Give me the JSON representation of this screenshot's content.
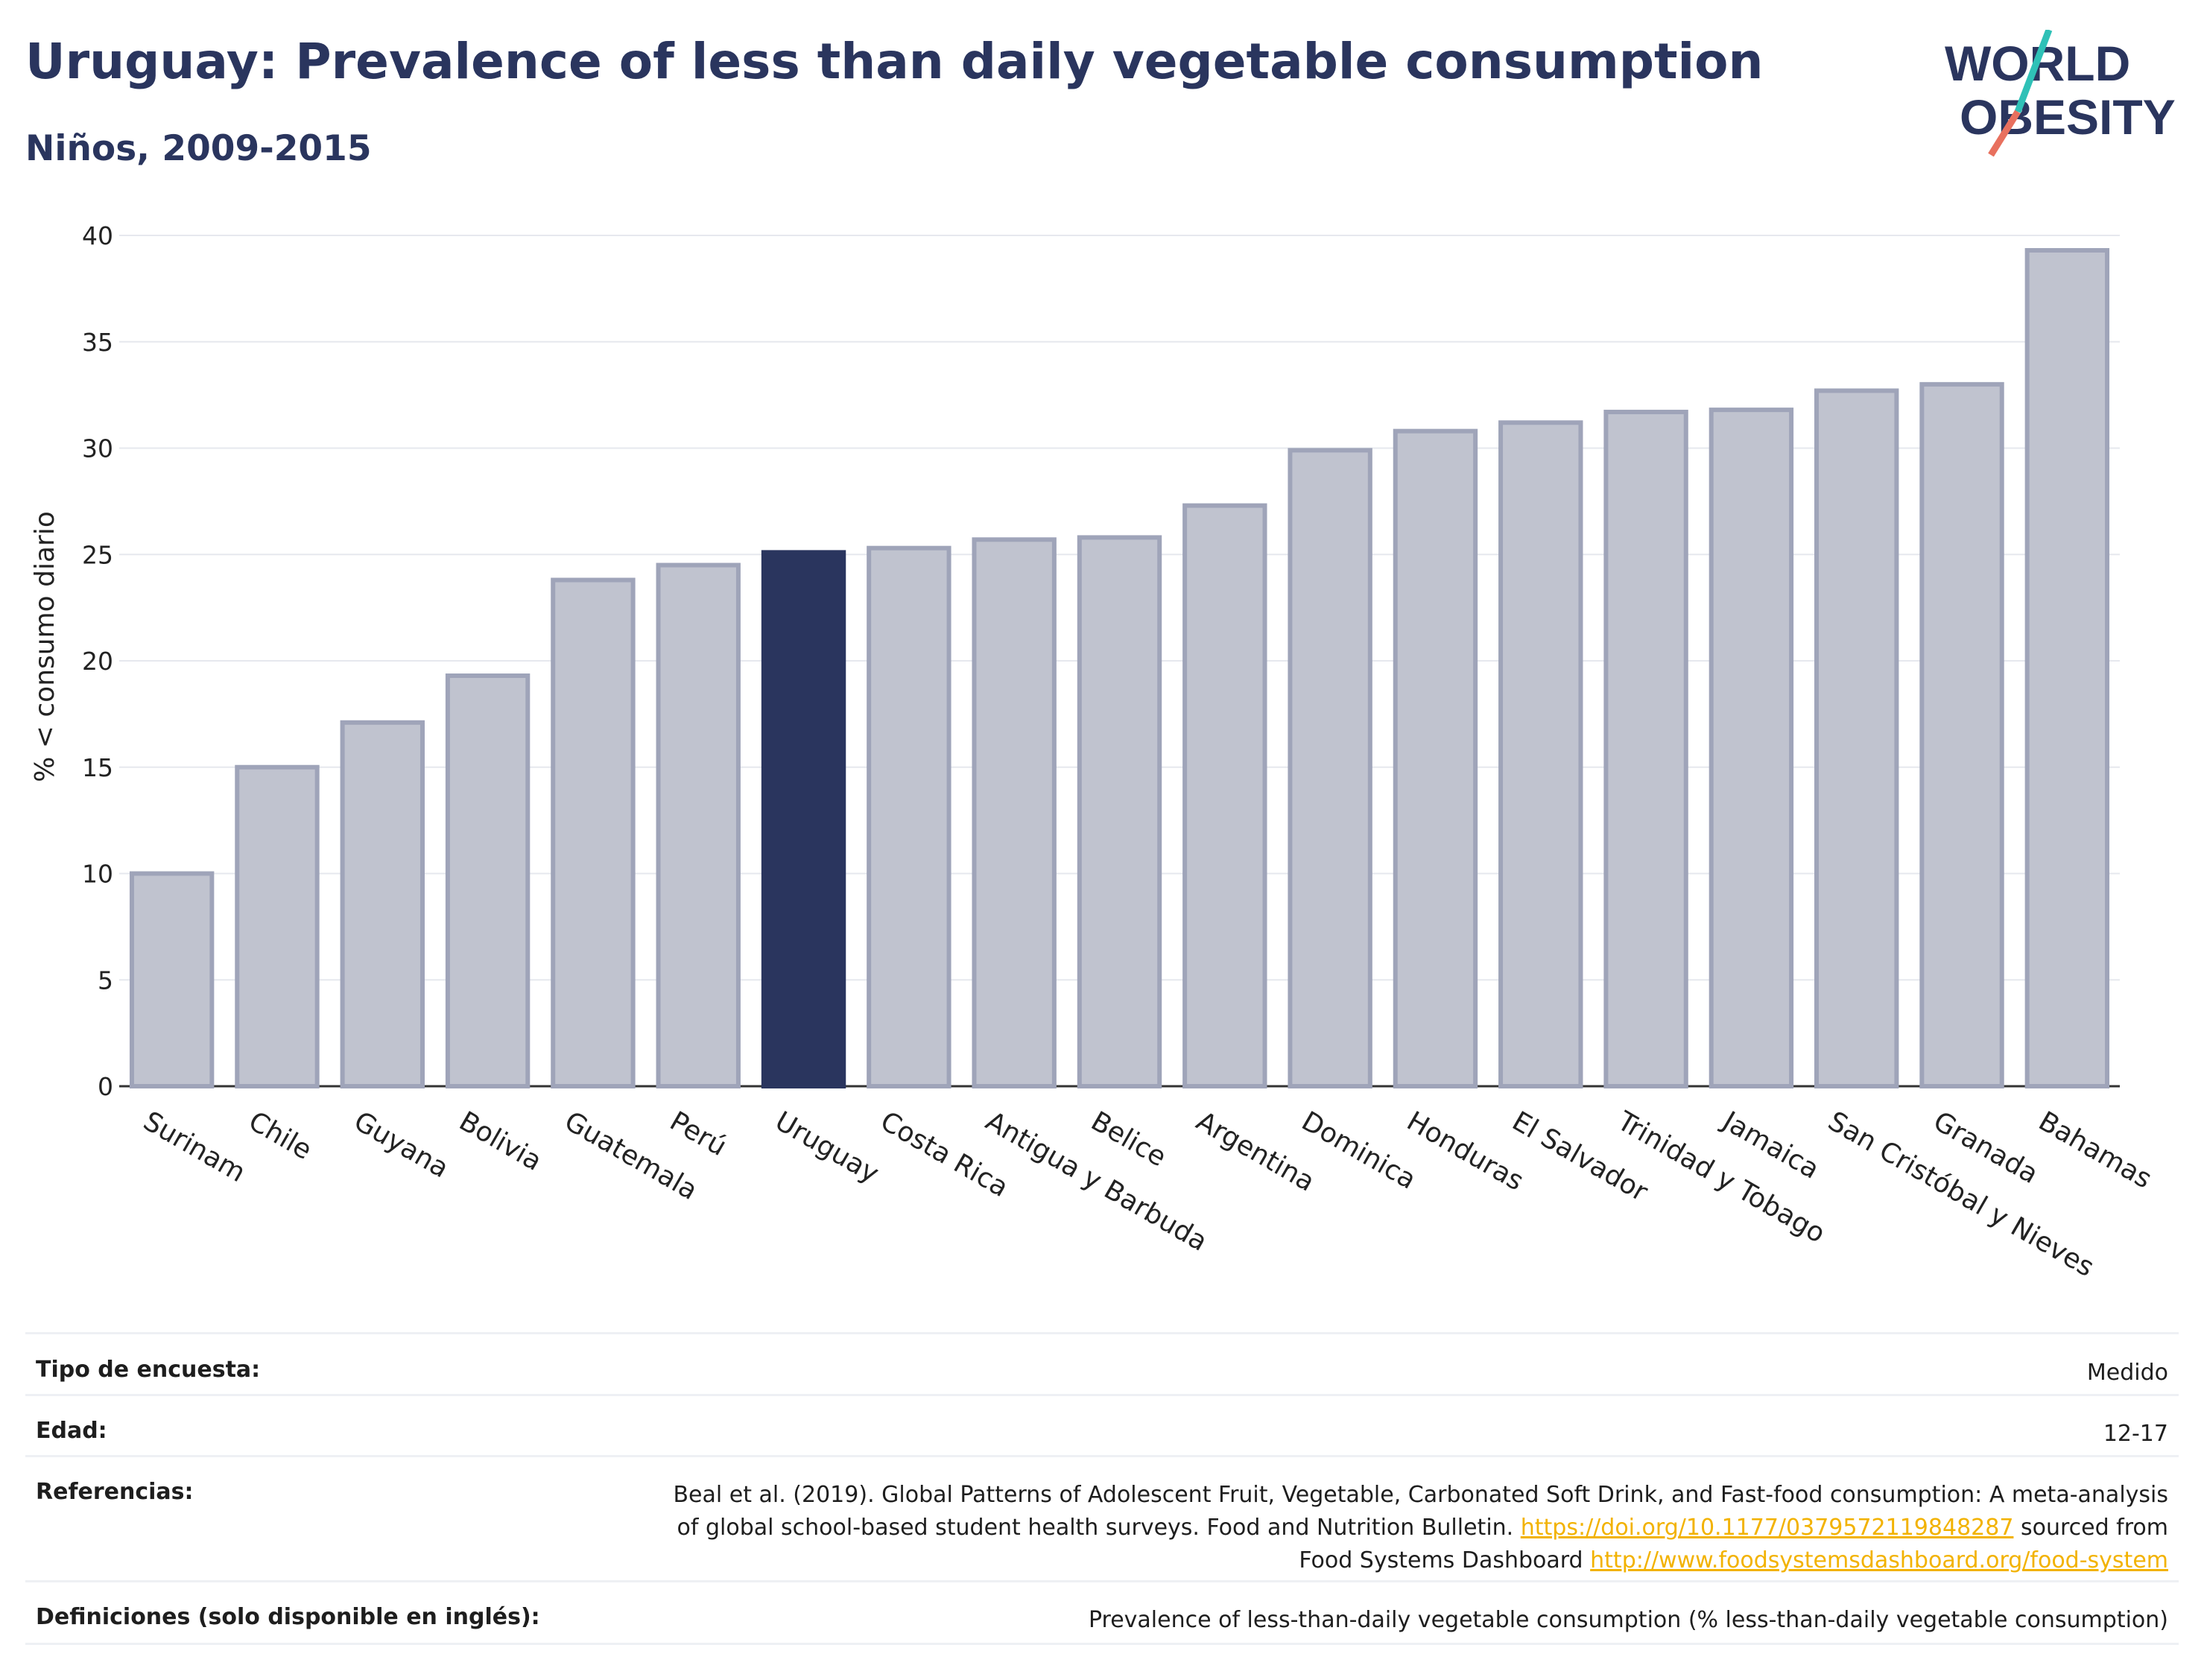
{
  "header": {
    "title": "Uruguay: Prevalence of less than daily vegetable consumption",
    "subtitle": "Niños, 2009-2015"
  },
  "logo": {
    "line1": "WORLD",
    "line2": "OBESITY",
    "colors": {
      "text": "#2a355e",
      "slash_top": "#2fc1b7",
      "slash_bottom": "#e8705e"
    }
  },
  "chart_data": {
    "type": "bar",
    "ylabel": "% < consumo diario",
    "xlabel": "",
    "ylim": [
      0,
      40
    ],
    "yticks": [
      0,
      5,
      10,
      15,
      20,
      25,
      30,
      35,
      40
    ],
    "grid": true,
    "highlight": "Uruguay",
    "colors": {
      "bar": "#c0c3cf",
      "bar_border": "#9fa4b9",
      "highlight": "#2a355e"
    },
    "categories": [
      "Surinam",
      "Chile",
      "Guyana",
      "Bolivia",
      "Guatemala",
      "Perú",
      "Uruguay",
      "Costa Rica",
      "Antigua y Barbuda",
      "Belice",
      "Argentina",
      "Dominica",
      "Honduras",
      "El Salvador",
      "Trinidad y Tobago",
      "Jamaica",
      "San Cristóbal y Nieves",
      "Granada",
      "Bahamas"
    ],
    "values": [
      10.0,
      15.0,
      17.1,
      19.3,
      23.8,
      24.5,
      25.1,
      25.3,
      25.7,
      25.8,
      27.3,
      29.9,
      30.8,
      31.2,
      31.7,
      31.8,
      32.7,
      33.0,
      39.3
    ]
  },
  "meta": {
    "survey_type": {
      "label": "Tipo de encuesta:",
      "value": "Medido"
    },
    "age": {
      "label": "Edad:",
      "value": "12-17"
    },
    "references": {
      "label": "Referencias:",
      "line1": "Beal et al. (2019). Global Patterns of Adolescent Fruit, Vegetable, Carbonated Soft Drink, and Fast-food consumption: A meta-analysis",
      "line2_text": "of global school-based student health surveys. Food and Nutrition Bulletin.",
      "line2_link": "https://doi.org/10.1177/0379572119848287",
      "line2_suffix": "sourced from",
      "line3_text": "Food Systems Dashboard",
      "line3_link": "http://www.foodsystemsdashboard.org/food-system"
    },
    "definitions": {
      "label": "Definiciones (solo disponible en inglés):",
      "value": "Prevalence of less-than-daily vegetable consumption (% less-than-daily vegetable consumption)"
    }
  }
}
